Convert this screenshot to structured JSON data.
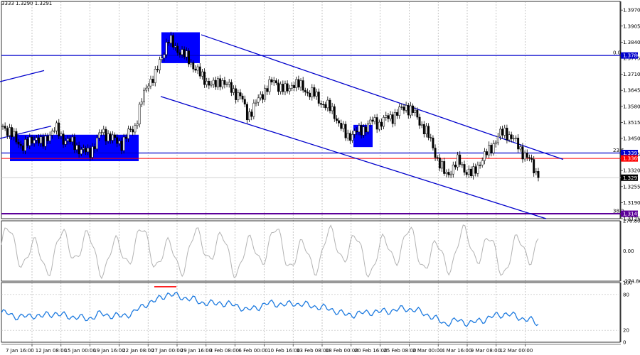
{
  "header": {
    "symbol_quote": "3333 1.3290 1.3291"
  },
  "colors": {
    "candles": "#000000",
    "trend": "#0000cc",
    "level_blue": "#0000cc",
    "level_red": "#ff0000",
    "level_purple": "#5c0099",
    "zone": "#0000ff",
    "cci": "#b3b3b3",
    "rsi": "#1e7be0",
    "grid": "#a0a0a0",
    "overbought_mark": "#ff0000"
  },
  "chart_data": [
    {
      "type": "candlestick",
      "name": "price",
      "ylim": [
        1.3125,
        1.4005
      ],
      "yticks": [
        "1.3970",
        "1.3905",
        "1.3840",
        "1.3775",
        "1.3710",
        "1.3645",
        "1.3580",
        "1.3515",
        "1.3450",
        "1.3385",
        "1.3320",
        "1.3255",
        "1.3190",
        "1.3125"
      ],
      "xlabels": [
        "7 Jan 16:00",
        "12 Jan 08:00",
        "15 Jan 00:00",
        "19 Jan 16:00",
        "22 Jan 08:00",
        "27 Jan 00:00",
        "29 Jan 16:00",
        "3 Feb 08:00",
        "6 Feb 00:00",
        "10 Feb 16:00",
        "13 Feb 08:00",
        "18 Feb 00:00",
        "20 Feb 16:00",
        "25 Feb 08:00",
        "2 Mar 00:00",
        "4 Mar 16:00",
        "9 Mar 08:00",
        "12 Mar 00:00"
      ],
      "close_path": [
        [
          0,
          1.35
        ],
        [
          1,
          1.348
        ],
        [
          2,
          1.344
        ],
        [
          3,
          1.342
        ],
        [
          4,
          1.343
        ],
        [
          5,
          1.346
        ],
        [
          6,
          1.342
        ],
        [
          7,
          1.347
        ],
        [
          8,
          1.349
        ],
        [
          9,
          1.345
        ],
        [
          10,
          1.344
        ],
        [
          11,
          1.342
        ],
        [
          12,
          1.34
        ],
        [
          13,
          1.339
        ],
        [
          14,
          1.343
        ],
        [
          15,
          1.348
        ],
        [
          16,
          1.346
        ],
        [
          17,
          1.344
        ],
        [
          18,
          1.343
        ],
        [
          19,
          1.347
        ],
        [
          20,
          1.35
        ],
        [
          21,
          1.36
        ],
        [
          22,
          1.368
        ],
        [
          23,
          1.37
        ],
        [
          24,
          1.378
        ],
        [
          25,
          1.385
        ],
        [
          26,
          1.382
        ],
        [
          27,
          1.38
        ],
        [
          28,
          1.377
        ],
        [
          29,
          1.374
        ],
        [
          30,
          1.37
        ],
        [
          31,
          1.368
        ],
        [
          32,
          1.366
        ],
        [
          33,
          1.369
        ],
        [
          34,
          1.366
        ],
        [
          35,
          1.364
        ],
        [
          36,
          1.362
        ],
        [
          37,
          1.354
        ],
        [
          38,
          1.358
        ],
        [
          39,
          1.362
        ],
        [
          40,
          1.366
        ],
        [
          41,
          1.368
        ],
        [
          42,
          1.366
        ],
        [
          43,
          1.364
        ],
        [
          44,
          1.368
        ],
        [
          45,
          1.366
        ],
        [
          46,
          1.364
        ],
        [
          47,
          1.363
        ],
        [
          48,
          1.36
        ],
        [
          49,
          1.358
        ],
        [
          50,
          1.356
        ],
        [
          51,
          1.35
        ],
        [
          52,
          1.346
        ],
        [
          53,
          1.347
        ],
        [
          54,
          1.348
        ],
        [
          55,
          1.35
        ],
        [
          56,
          1.352
        ],
        [
          57,
          1.351
        ],
        [
          58,
          1.353
        ],
        [
          59,
          1.354
        ],
        [
          60,
          1.356
        ],
        [
          61,
          1.358
        ],
        [
          62,
          1.356
        ],
        [
          63,
          1.352
        ],
        [
          64,
          1.348
        ],
        [
          65,
          1.342
        ],
        [
          66,
          1.335
        ],
        [
          67,
          1.33
        ],
        [
          68,
          1.333
        ],
        [
          69,
          1.336
        ],
        [
          70,
          1.332
        ],
        [
          71,
          1.33
        ],
        [
          72,
          1.335
        ],
        [
          73,
          1.338
        ],
        [
          74,
          1.342
        ],
        [
          75,
          1.346
        ],
        [
          76,
          1.348
        ],
        [
          77,
          1.345
        ],
        [
          78,
          1.342
        ],
        [
          79,
          1.338
        ],
        [
          80,
          1.335
        ],
        [
          81,
          1.3291
        ]
      ],
      "price_levels": [
        {
          "price": 1.3786,
          "label": "1.3786",
          "pct": "0.0",
          "style": "blue"
        },
        {
          "price": 1.3391,
          "label": "1.3391",
          "pct": "23.6",
          "style": "blue"
        },
        {
          "price": 1.3369,
          "label": "1.3369",
          "pct": "",
          "style": "red"
        },
        {
          "price": 1.3291,
          "label": "1.3291",
          "pct": "",
          "style": "current"
        },
        {
          "price": 1.3145,
          "label": "1.3145",
          "pct": "38.2",
          "style": "purple"
        }
      ]
    },
    {
      "type": "line",
      "name": "CCI",
      "ylim": [
        -274.865,
        276.8074
      ],
      "yticks": [
        "276.8074",
        "0.00",
        "-274.865"
      ]
    },
    {
      "type": "line",
      "name": "RSI",
      "ylim": [
        0,
        100
      ],
      "yticks": [
        "100",
        "80",
        "20",
        "0"
      ],
      "levels": [
        80,
        20
      ]
    }
  ]
}
